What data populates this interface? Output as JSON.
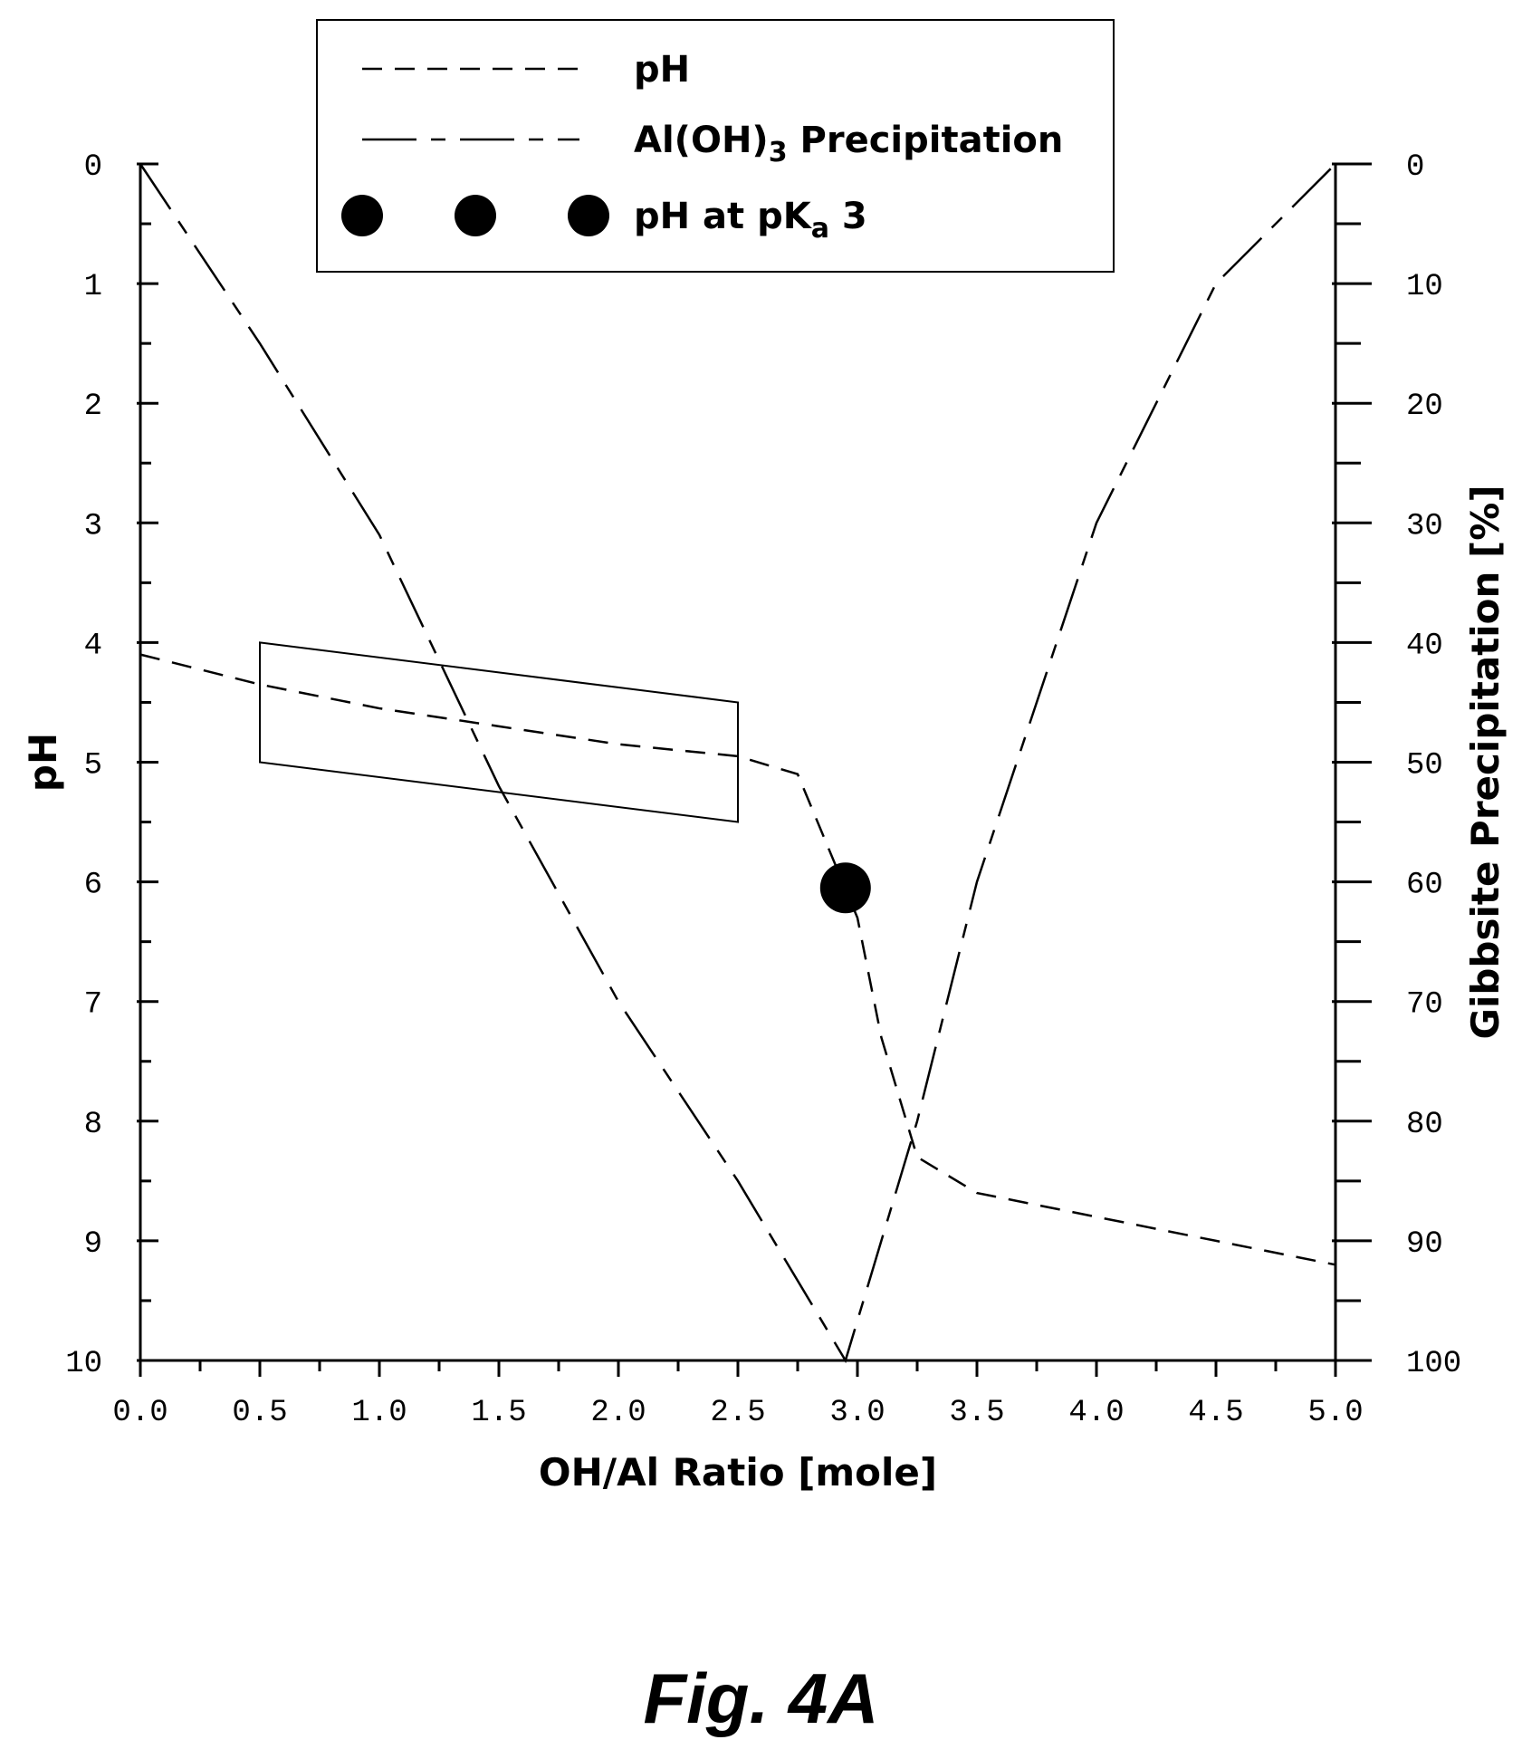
{
  "chart_data": {
    "type": "line",
    "x_axis": {
      "label": "OH/Al Ratio [mole]",
      "range": [
        0,
        5
      ],
      "ticks": [
        "0.0",
        "0.5",
        "1.0",
        "1.5",
        "2.0",
        "2.5",
        "3.0",
        "3.5",
        "4.0",
        "4.5",
        "5.0"
      ]
    },
    "y_axis_left": {
      "label": "pH",
      "range": [
        0,
        10
      ],
      "inverted": true,
      "ticks": [
        "0",
        "1",
        "2",
        "3",
        "4",
        "5",
        "6",
        "7",
        "8",
        "9",
        "10"
      ]
    },
    "y_axis_right": {
      "label": "Gibbsite Precipitation [%]",
      "range": [
        0,
        100
      ],
      "inverted": true,
      "ticks": [
        "0",
        "10",
        "20",
        "30",
        "40",
        "50",
        "60",
        "70",
        "80",
        "90",
        "100"
      ]
    },
    "legend": {
      "placement": "top-center",
      "entries": [
        {
          "label": "pH",
          "style": "dashed"
        },
        {
          "label_main": "Al(OH)",
          "label_sub": "3",
          "label_rest": " Precipitation",
          "style": "dash-dot"
        },
        {
          "label_main": "pH at pK",
          "label_sub": "a",
          "label_rest": " 3",
          "style": "marker-circle"
        }
      ]
    },
    "series": [
      {
        "name": "pH",
        "axis": "left",
        "style": "dashed",
        "x": [
          0.0,
          0.5,
          1.0,
          1.5,
          2.0,
          2.5,
          2.75,
          3.0,
          3.1,
          3.25,
          3.5,
          4.0,
          4.5,
          5.0
        ],
        "y": [
          4.1,
          4.35,
          4.55,
          4.7,
          4.85,
          4.95,
          5.1,
          6.3,
          7.3,
          8.3,
          8.6,
          8.8,
          9.0,
          9.2
        ]
      },
      {
        "name": "Al(OH)3 Precipitation",
        "axis": "right",
        "style": "dash-dot",
        "x": [
          0.0,
          0.5,
          1.0,
          1.5,
          2.0,
          2.5,
          2.95,
          3.25,
          3.5,
          4.0,
          4.5,
          5.0
        ],
        "y": [
          0,
          15,
          31,
          52,
          70,
          85,
          100,
          80,
          60,
          30,
          10,
          0
        ]
      }
    ],
    "marker": {
      "x": 2.95,
      "y": 6.05,
      "axis": "left"
    },
    "highlight_box": {
      "corners": [
        [
          0.5,
          4.0
        ],
        [
          2.5,
          4.5
        ],
        [
          2.5,
          5.5
        ],
        [
          0.5,
          5.0
        ]
      ],
      "axis": "left"
    }
  },
  "caption": "Fig. 4A"
}
